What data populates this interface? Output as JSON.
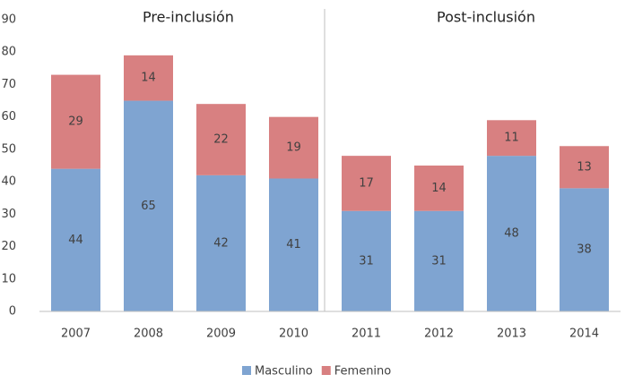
{
  "chart_data": {
    "type": "stacked_bar",
    "annotations": [
      "Pre-inclusión",
      "Post-inclusión"
    ],
    "categories": [
      "2007",
      "2008",
      "2009",
      "2010",
      "2011",
      "2012",
      "2013",
      "2014"
    ],
    "series": [
      {
        "name": "Masculino",
        "color": "#7fa4d1",
        "values": [
          44,
          65,
          42,
          41,
          31,
          31,
          48,
          38
        ]
      },
      {
        "name": "Femenino",
        "color": "#d88081",
        "values": [
          29,
          14,
          22,
          19,
          17,
          14,
          11,
          13
        ]
      }
    ],
    "ylim": [
      0,
      90
    ],
    "yticks": [
      0,
      10,
      20,
      30,
      40,
      50,
      60,
      70,
      80,
      90
    ],
    "grid": false,
    "legend": "bottom"
  }
}
